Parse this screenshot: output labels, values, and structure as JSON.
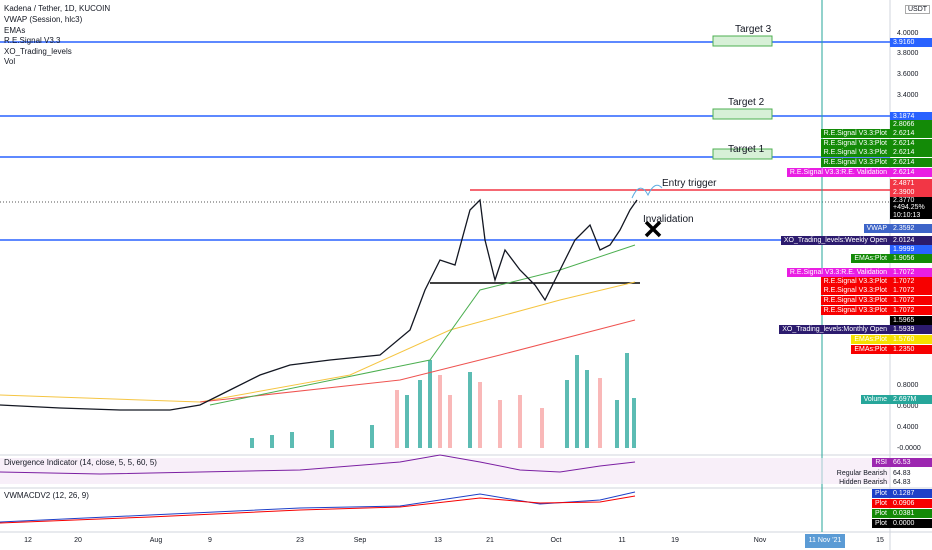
{
  "header": {
    "title": "Kadena / Tether, 1D, KUCOIN",
    "indicators": [
      "VWAP (Session, hlc3)",
      "EMAs",
      "R.E.Signal V3.3",
      "XO_Trading_levels",
      "Vol"
    ],
    "currency": "USDT"
  },
  "price_axis": {
    "ticks": [
      "4.0000",
      "3.8000",
      "3.6000",
      "3.4000",
      "0.8000",
      "0.6000",
      "0.4000",
      "-0.0000"
    ]
  },
  "annotations": [
    "Target 3",
    "Target 2",
    "Target 1",
    "Entry trigger",
    "Invalidation"
  ],
  "price_labels": [
    {
      "value": "3.9160",
      "color": "#2962ff"
    },
    {
      "value": "3.1874",
      "color": "#2962ff"
    },
    {
      "value": "2.8066",
      "color": "#138a07"
    },
    {
      "name": "R.E.Signal V3.3:Plot",
      "value": "2.6214",
      "color": "#138a07"
    },
    {
      "name": "R.E.Signal V3.3:Plot",
      "value": "2.6214",
      "color": "#138a07"
    },
    {
      "name": "R.E.Signal V3.3:Plot",
      "value": "2.6214",
      "color": "#138a07"
    },
    {
      "name": "R.E.Signal V3.3:Plot",
      "value": "2.6214",
      "color": "#138a07"
    },
    {
      "name": "R.E.Signal V3.3:R.E. Validation",
      "value": "2.6214",
      "color": "#e91ee3"
    },
    {
      "value": "2.4871",
      "color": "#f23645"
    },
    {
      "value": "2.3900",
      "color": "#f23645"
    },
    {
      "name": "VWAP",
      "value": "2.3592",
      "color": "#3d64c8"
    },
    {
      "name": "XO_Trading_levels:Weekly Open",
      "value": "2.0124",
      "color": "#2c1b6e"
    },
    {
      "value": "1.9999",
      "color": "#2962ff"
    },
    {
      "name": "EMAs:Plot",
      "value": "1.9056",
      "color": "#138a07"
    },
    {
      "name": "R.E.Signal V3.3:R.E. Validation",
      "value": "1.7072",
      "color": "#e91ee3"
    },
    {
      "name": "R.E.Signal V3.3:Plot",
      "value": "1.7072",
      "color": "#f70000"
    },
    {
      "name": "R.E.Signal V3.3:Plot",
      "value": "1.7072",
      "color": "#f70000"
    },
    {
      "name": "R.E.Signal V3.3:Plot",
      "value": "1.7072",
      "color": "#f70000"
    },
    {
      "name": "R.E.Signal V3.3:Plot",
      "value": "1.7072",
      "color": "#f70000"
    },
    {
      "value": "1.5965",
      "color": "#000000"
    },
    {
      "name": "XO_Trading_levels:Monthly Open",
      "value": "1.5939",
      "color": "#2c1b6e"
    },
    {
      "name": "EMAs:Plot",
      "value": "1.5760",
      "color": "#f5e000"
    },
    {
      "name": "EMAs:Plot",
      "value": "1.2350",
      "color": "#f70000"
    },
    {
      "name": "Volume",
      "value": "2.697M",
      "color": "#26a69a"
    }
  ],
  "last_price": {
    "value": "2.3770",
    "change": "+494.25%",
    "countdown": "10:10:13"
  },
  "divergence": {
    "title": "Divergence Indicator (14, close, 5, 5, 60, 5)",
    "labels": [
      {
        "name": "RSI",
        "value": "66.53"
      },
      {
        "name": "Regular Bearish",
        "value": "64.83"
      },
      {
        "name": "Hidden Bearish",
        "value": "64.83"
      }
    ]
  },
  "macd": {
    "title": "VWMACDV2 (12, 26, 9)",
    "labels": [
      {
        "name": "Plot",
        "value": "0.1287",
        "color": "#1e40c8"
      },
      {
        "name": "Plot",
        "value": "0.0906",
        "color": "#f70000"
      },
      {
        "name": "Plot",
        "value": "0.0381",
        "color": "#138a07"
      },
      {
        "name": "Plot",
        "value": "0.0000",
        "color": "#000000"
      }
    ]
  },
  "time_axis": [
    "12",
    "20",
    "Aug",
    "9",
    "23",
    "Sep",
    "13",
    "21",
    "Oct",
    "11",
    "19",
    "Nov",
    "15"
  ],
  "cursor_date": "11 Nov '21"
}
